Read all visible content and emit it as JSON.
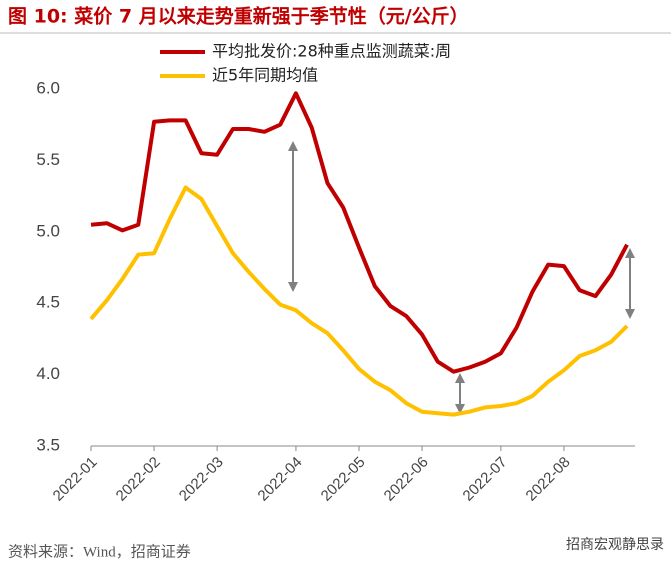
{
  "chart_data": {
    "type": "line",
    "title": "图 10: 菜价 7 月以来走势重新强于季节性（元/公斤）",
    "source": "资料来源：Wind，招商证券",
    "watermark": "招商宏观静思录",
    "categories": [
      "2022-01",
      null,
      null,
      null,
      "2022-02",
      null,
      null,
      null,
      "2022-03",
      null,
      null,
      null,
      null,
      "2022-04",
      null,
      null,
      null,
      "2022-05",
      null,
      null,
      null,
      "2022-06",
      null,
      null,
      null,
      null,
      "2022-07",
      null,
      null,
      null,
      "2022-08",
      null,
      null,
      null,
      null
    ],
    "series": [
      {
        "name": "平均批发价:28种重点监测蔬菜:周",
        "color": "#c00000",
        "values": [
          5.05,
          5.06,
          5.01,
          5.05,
          5.77,
          5.78,
          5.78,
          5.55,
          5.54,
          5.72,
          5.72,
          5.7,
          5.75,
          5.97,
          5.73,
          5.34,
          5.17,
          4.89,
          4.62,
          4.48,
          4.41,
          4.28,
          4.09,
          4.02,
          4.05,
          4.09,
          4.15,
          4.33,
          4.58,
          4.77,
          4.76,
          4.59,
          4.55,
          4.7,
          4.91
        ]
      },
      {
        "name": "近5年同期均值",
        "color": "#ffc000",
        "values": [
          4.39,
          4.52,
          4.67,
          4.84,
          4.85,
          5.09,
          5.31,
          5.23,
          5.04,
          4.85,
          4.72,
          4.6,
          4.49,
          4.45,
          4.36,
          4.29,
          4.17,
          4.04,
          3.95,
          3.89,
          3.8,
          3.74,
          3.73,
          3.72,
          3.74,
          3.77,
          3.78,
          3.8,
          3.85,
          3.95,
          4.03,
          4.13,
          4.17,
          4.23,
          4.34
        ]
      }
    ],
    "ylim": [
      3.5,
      6.0
    ],
    "yticks": [
      3.5,
      {
        "value": 4.0,
        "label": "4.0"
      },
      4.5,
      {
        "value": 5.0,
        "label": "5.0"
      },
      5.5,
      {
        "value": 6.0,
        "label": "6.0"
      }
    ]
  }
}
